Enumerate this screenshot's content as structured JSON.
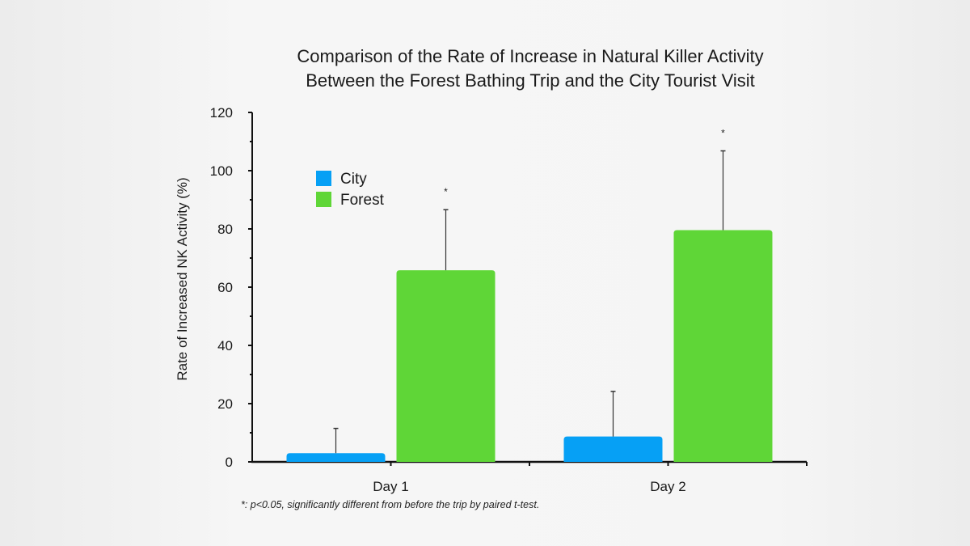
{
  "chart_data": {
    "type": "bar",
    "title_line1": "Comparison of the Rate of Increase in Natural Killer Activity",
    "title_line2": "Between the Forest Bathing Trip and the City Tourist Visit",
    "xlabel": "",
    "ylabel": "Rate of Increased NK Activity (%)",
    "ylim": [
      0,
      120
    ],
    "yticks": [
      "0",
      "20",
      "40",
      "60",
      "80",
      "100",
      "120"
    ],
    "categories": [
      "Day 1",
      "Day 2"
    ],
    "series": [
      {
        "name": "City",
        "color": "#06a0f5",
        "values": [
          3,
          8.7
        ],
        "error_upper": [
          11.5,
          24.2
        ],
        "significant": [
          false,
          false
        ]
      },
      {
        "name": "Forest",
        "color": "#5fd637",
        "values": [
          65.8,
          79.6
        ],
        "error_upper": [
          86.6,
          106.8
        ],
        "significant": [
          true,
          true
        ]
      }
    ],
    "significance_marker": "*",
    "legend_position": "top-left",
    "footnote": "*: p<0.05, significantly different from before the trip by paired t-test.",
    "grid": false
  }
}
